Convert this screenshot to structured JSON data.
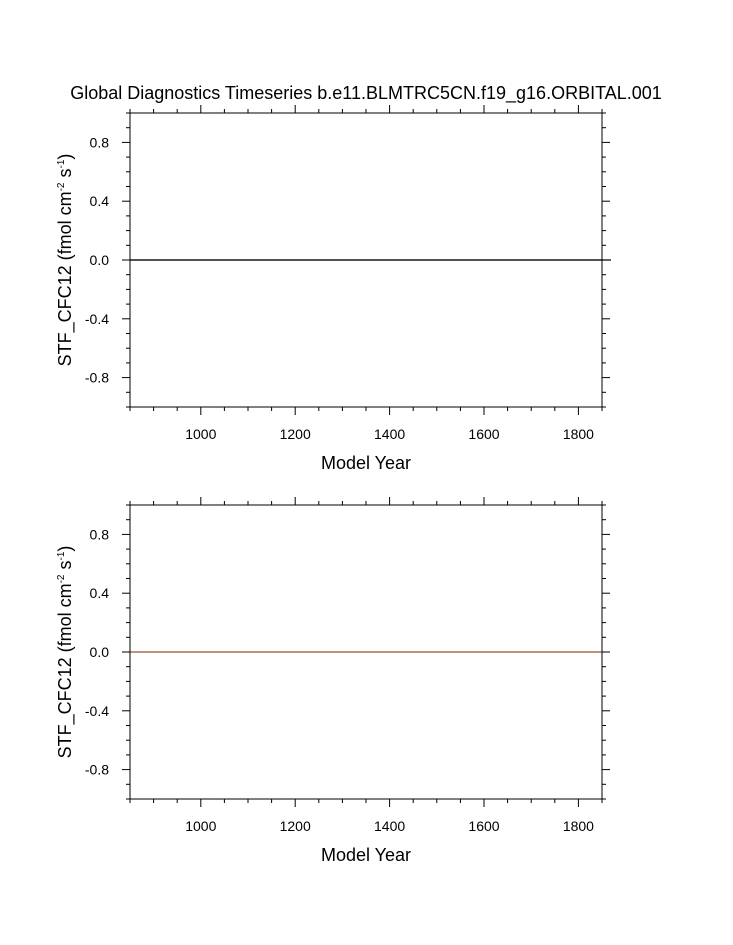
{
  "title": "Global Diagnostics Timeseries b.e11.BLMTRC5CN.f19_g16.ORBITAL.001",
  "colors": {
    "frame": "#000000",
    "zero_line": "#000000",
    "series_line": "#a0522d"
  },
  "chart_data": [
    {
      "type": "line",
      "xlabel": "Model Year",
      "ylabel": {
        "prefix": "STF_CFC12 (fmol cm",
        "sup1": "-2",
        "mid": " s",
        "sup2": "-1",
        "suffix": ")"
      },
      "xlim": [
        850,
        1850
      ],
      "ylim": [
        -1.0,
        1.0
      ],
      "x_ticks": [
        1000,
        1200,
        1400,
        1600,
        1800
      ],
      "x_tick_labels": [
        "1000",
        "1200",
        "1400",
        "1600",
        "1800"
      ],
      "x_minor_step": 50,
      "y_ticks": [
        0.8,
        0.4,
        0.0,
        -0.4,
        -0.8
      ],
      "y_tick_labels": [
        "0.8",
        "0.4",
        "0.0",
        "-0.4",
        "-0.8"
      ],
      "y_minor_step": 0.1,
      "reference_line_y": 0.0,
      "series": [
        {
          "x": [
            850,
            1850
          ],
          "y": [
            0.0,
            0.0
          ],
          "color": "#a0522d"
        }
      ]
    },
    {
      "type": "line",
      "xlabel": "Model Year",
      "ylabel": {
        "prefix": "STF_CFC12 (fmol cm",
        "sup1": "-2",
        "mid": " s",
        "sup2": "-1",
        "suffix": ")"
      },
      "xlim": [
        850,
        1850
      ],
      "ylim": [
        -1.0,
        1.0
      ],
      "x_ticks": [
        1000,
        1200,
        1400,
        1600,
        1800
      ],
      "x_tick_labels": [
        "1000",
        "1200",
        "1400",
        "1600",
        "1800"
      ],
      "x_minor_step": 50,
      "y_ticks": [
        0.8,
        0.4,
        0.0,
        -0.4,
        -0.8
      ],
      "y_tick_labels": [
        "0.8",
        "0.4",
        "0.0",
        "-0.4",
        "-0.8"
      ],
      "y_minor_step": 0.1,
      "reference_line_y": null,
      "series": [
        {
          "x": [
            850,
            1850
          ],
          "y": [
            0.0,
            0.0
          ],
          "color": "#a0522d"
        }
      ]
    }
  ]
}
